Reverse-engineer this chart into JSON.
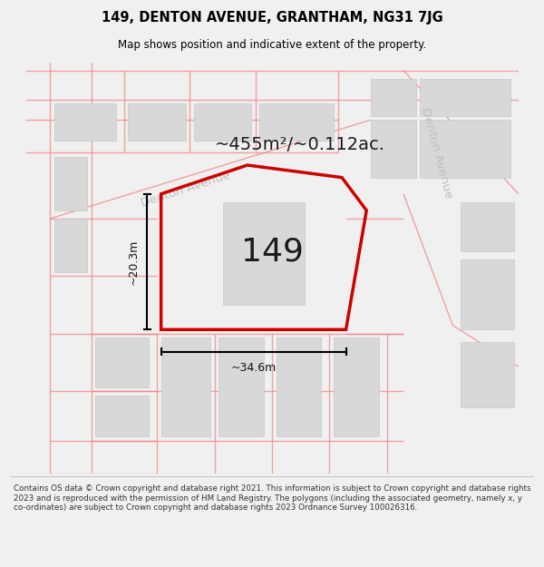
{
  "title": "149, DENTON AVENUE, GRANTHAM, NG31 7JG",
  "subtitle": "Map shows position and indicative extent of the property.",
  "footer": "Contains OS data © Crown copyright and database right 2021. This information is subject to Crown copyright and database rights 2023 and is reproduced with the permission of HM Land Registry. The polygons (including the associated geometry, namely x, y co-ordinates) are subject to Crown copyright and database rights 2023 Ordnance Survey 100026316.",
  "area_text": "~455m²/~0.112ac.",
  "property_label": "149",
  "width_label": "~34.6m",
  "height_label": "~20.3m",
  "road_color": "#f08080",
  "road_alpha": 0.7,
  "property_color": "#cc0000",
  "building_color": "#d8d8d8",
  "street_label_color": "#c0c0c0",
  "bg_color": "#ffffff",
  "fig_bg": "#f0f0f0"
}
